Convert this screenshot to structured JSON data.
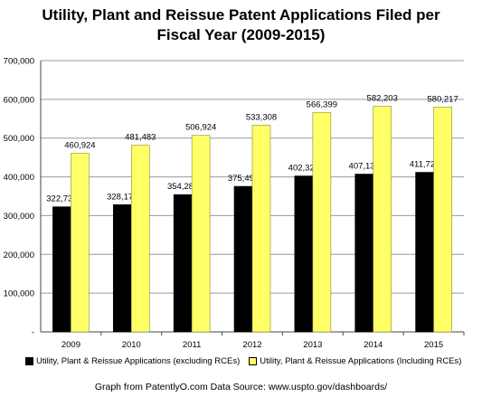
{
  "chart_data": {
    "type": "bar",
    "title_line1": "Utility, Plant and Reissue Patent Applications Filed per",
    "title_line2": "Fiscal Year (2009-2015)",
    "categories": [
      "2009",
      "2010",
      "2011",
      "2012",
      "2013",
      "2014",
      "2015"
    ],
    "series": [
      {
        "name": "Utility, Plant & Reissue Applications (excluding RCEs)",
        "color": "#000000",
        "values": [
          322735,
          328171,
          354280,
          375491,
          402327,
          407137,
          411728
        ],
        "labels": [
          "322,735",
          "328,171",
          "354,280",
          "375,491",
          "402,327",
          "407,137",
          "411,728"
        ]
      },
      {
        "name": "Utility, Plant & Reissue Applications (Including RCEs)",
        "color": "#ffff66",
        "values": [
          460924,
          481483,
          506924,
          533308,
          566399,
          582203,
          580217
        ],
        "labels": [
          "460,924",
          "481,483",
          "506,924",
          "533,308",
          "566,399",
          "582,203",
          "580,217"
        ]
      }
    ],
    "ylim": [
      0,
      700000
    ],
    "y_ticks": [
      0,
      100000,
      200000,
      300000,
      400000,
      500000,
      600000,
      700000
    ],
    "y_tick_labels": [
      "-",
      "100,000",
      "200,000",
      "300,000",
      "400,000",
      "500,000",
      "600,000",
      "700,000"
    ],
    "grid": true,
    "legend_position": "bottom"
  },
  "footer": "Graph from PatentlyO.com  Data Source: www.uspto.gov/dashboards/"
}
